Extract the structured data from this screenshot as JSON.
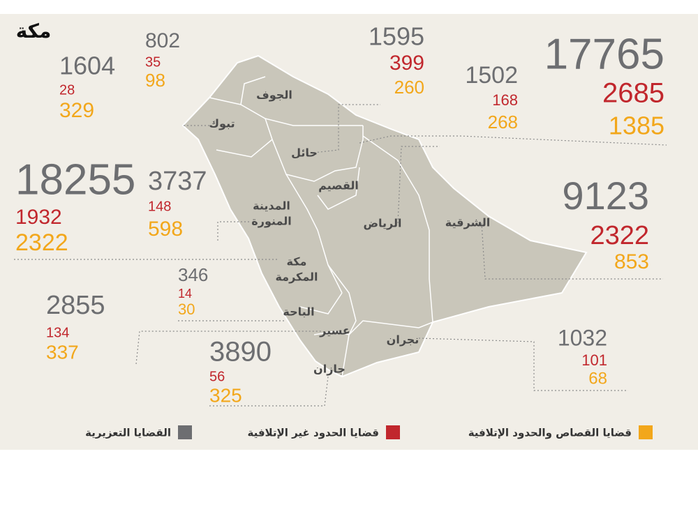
{
  "logo": "مكة",
  "regions": [
    {
      "name": [
        "الجوف"
      ],
      "values": [
        802,
        35,
        98
      ]
    },
    {
      "name": [
        "تبوك"
      ],
      "values": [
        1604,
        28,
        329
      ]
    },
    {
      "name": [
        "حائل"
      ],
      "values": [
        1595,
        399,
        260
      ]
    },
    {
      "name": [
        "القصيم"
      ],
      "values": [
        1502,
        168,
        268
      ]
    },
    {
      "name": [
        "الرياض"
      ],
      "values": [
        17765,
        2685,
        1385
      ]
    },
    {
      "name": [
        "الشرقية"
      ],
      "values": [
        9123,
        2322,
        853
      ]
    },
    {
      "name": [
        "المدينة",
        "المنورة"
      ],
      "values": [
        3737,
        148,
        598
      ]
    },
    {
      "name": [
        "مكة",
        "المكرمة"
      ],
      "values": [
        18255,
        1932,
        2322
      ]
    },
    {
      "name": [
        "الباحة"
      ],
      "values": [
        346,
        14,
        30
      ]
    },
    {
      "name": [
        "عسير"
      ],
      "values": [
        2855,
        134,
        337
      ]
    },
    {
      "name": [
        "جازان"
      ],
      "values": [
        3890,
        56,
        325
      ]
    },
    {
      "name": [
        "نجران"
      ],
      "values": [
        1032,
        101,
        68
      ]
    }
  ],
  "legend": [
    {
      "label": "القضايا التعزيرية",
      "color": "#6d6e71"
    },
    {
      "label": "قضايا الحدود غير الإتلافية",
      "color": "#c1272d"
    },
    {
      "label": "قضايا القصاص والحدود الإتلافية",
      "color": "#f2a71b"
    }
  ]
}
